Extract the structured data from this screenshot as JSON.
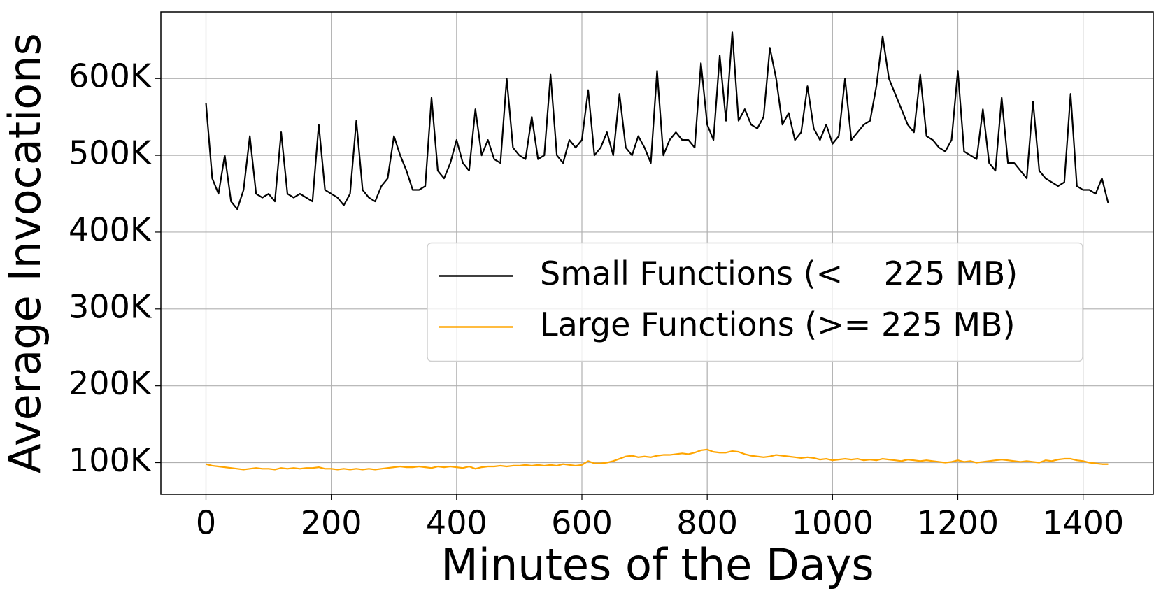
{
  "chart_data": {
    "type": "line",
    "x_label": "Minutes of the Days",
    "y_label": "Average Invocations",
    "x": [
      0,
      10,
      20,
      30,
      40,
      50,
      60,
      70,
      80,
      90,
      100,
      110,
      120,
      130,
      140,
      150,
      160,
      170,
      180,
      190,
      200,
      210,
      220,
      230,
      240,
      250,
      260,
      270,
      280,
      290,
      300,
      310,
      320,
      330,
      340,
      350,
      360,
      370,
      380,
      390,
      400,
      410,
      420,
      430,
      440,
      450,
      460,
      470,
      480,
      490,
      500,
      510,
      520,
      530,
      540,
      550,
      560,
      570,
      580,
      590,
      600,
      610,
      620,
      630,
      640,
      650,
      660,
      670,
      680,
      690,
      700,
      710,
      720,
      730,
      740,
      750,
      760,
      770,
      780,
      790,
      800,
      810,
      820,
      830,
      840,
      850,
      860,
      870,
      880,
      890,
      900,
      910,
      920,
      930,
      940,
      950,
      960,
      970,
      980,
      990,
      1000,
      1010,
      1020,
      1030,
      1040,
      1050,
      1060,
      1070,
      1080,
      1090,
      1100,
      1110,
      1120,
      1130,
      1140,
      1150,
      1160,
      1170,
      1180,
      1190,
      1200,
      1210,
      1220,
      1230,
      1240,
      1250,
      1260,
      1270,
      1280,
      1290,
      1300,
      1310,
      1320,
      1330,
      1340,
      1350,
      1360,
      1370,
      1380,
      1390,
      1400,
      1410,
      1420,
      1430,
      1440
    ],
    "series": [
      {
        "name": "Small Functions (<    225 MB)",
        "color": "#000000",
        "values": [
          568000,
          470000,
          450000,
          500000,
          440000,
          430000,
          455000,
          525000,
          450000,
          445000,
          450000,
          440000,
          530000,
          450000,
          445000,
          450000,
          445000,
          440000,
          540000,
          455000,
          450000,
          445000,
          435000,
          450000,
          545000,
          455000,
          445000,
          440000,
          460000,
          470000,
          525000,
          500000,
          480000,
          455000,
          455000,
          460000,
          575000,
          480000,
          470000,
          490000,
          520000,
          490000,
          480000,
          560000,
          500000,
          520000,
          495000,
          490000,
          600000,
          510000,
          500000,
          495000,
          550000,
          495000,
          500000,
          605000,
          500000,
          490000,
          520000,
          510000,
          520000,
          585000,
          500000,
          510000,
          530000,
          500000,
          580000,
          510000,
          500000,
          525000,
          510000,
          490000,
          610000,
          500000,
          520000,
          530000,
          520000,
          520000,
          510000,
          620000,
          540000,
          520000,
          630000,
          545000,
          660000,
          545000,
          560000,
          540000,
          535000,
          550000,
          640000,
          600000,
          540000,
          555000,
          520000,
          530000,
          590000,
          535000,
          520000,
          540000,
          515000,
          525000,
          600000,
          520000,
          530000,
          540000,
          545000,
          590000,
          655000,
          600000,
          580000,
          560000,
          540000,
          530000,
          605000,
          525000,
          520000,
          510000,
          505000,
          520000,
          610000,
          505000,
          500000,
          495000,
          560000,
          490000,
          480000,
          575000,
          490000,
          490000,
          480000,
          470000,
          570000,
          480000,
          470000,
          465000,
          460000,
          465000,
          580000,
          460000,
          455000,
          455000,
          450000,
          470000,
          438000
        ]
      },
      {
        "name": "Large Functions (>= 225 MB)",
        "color": "#ffa500",
        "values": [
          98000,
          96000,
          95000,
          94000,
          93000,
          92000,
          91000,
          92000,
          93000,
          92000,
          92000,
          91000,
          93000,
          92000,
          93000,
          92000,
          93000,
          93000,
          94000,
          92000,
          92000,
          91000,
          92000,
          91000,
          92000,
          91000,
          92000,
          91000,
          92000,
          93000,
          94000,
          95000,
          94000,
          94000,
          95000,
          94000,
          93000,
          95000,
          94000,
          95000,
          94000,
          93000,
          95000,
          92000,
          94000,
          95000,
          95000,
          96000,
          95000,
          96000,
          96000,
          97000,
          96000,
          97000,
          96000,
          97000,
          96000,
          98000,
          97000,
          96000,
          97000,
          102000,
          99000,
          99000,
          100000,
          102000,
          105000,
          108000,
          109000,
          107000,
          108000,
          107000,
          109000,
          110000,
          110000,
          111000,
          112000,
          111000,
          113000,
          116000,
          117000,
          114000,
          113000,
          113000,
          115000,
          114000,
          111000,
          109000,
          108000,
          107000,
          108000,
          110000,
          109000,
          108000,
          107000,
          106000,
          107000,
          106000,
          104000,
          105000,
          103000,
          104000,
          105000,
          104000,
          105000,
          103000,
          104000,
          103000,
          105000,
          104000,
          103000,
          102000,
          104000,
          103000,
          102000,
          103000,
          102000,
          101000,
          100000,
          101000,
          103000,
          101000,
          102000,
          100000,
          101000,
          102000,
          103000,
          104000,
          103000,
          102000,
          101000,
          102000,
          101000,
          100000,
          103000,
          102000,
          104000,
          105000,
          105000,
          103000,
          102000,
          100000,
          99000,
          98000,
          98000
        ]
      }
    ],
    "xlim": [
      -72,
      1512
    ],
    "ylim": [
      58600,
      686700
    ],
    "xticks": [
      0,
      200,
      400,
      600,
      800,
      1000,
      1200,
      1400
    ],
    "yticks": [
      {
        "value": 100000,
        "label": "100K"
      },
      {
        "value": 200000,
        "label": "200K"
      },
      {
        "value": 300000,
        "label": "300K"
      },
      {
        "value": 400000,
        "label": "400K"
      },
      {
        "value": 500000,
        "label": "500K"
      },
      {
        "value": 600000,
        "label": "600K"
      }
    ],
    "grid": true,
    "legend": "center right"
  }
}
